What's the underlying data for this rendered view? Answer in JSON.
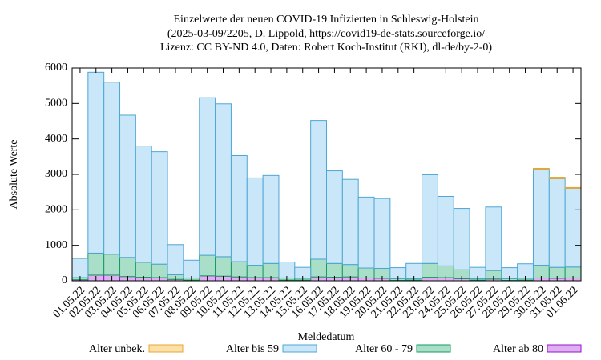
{
  "chart_data": {
    "type": "bar",
    "stacked": true,
    "title": "Einzelwerte der neuen COVID-19 Infizierten in Schleswig-Holstein",
    "subtitle": [
      "(2025-03-09/2205, D. Lippold, https://covid19-de-stats.sourceforge.io/",
      "Lizenz: CC BY-ND 4.0, Daten: Robert Koch-Institut (RKI), dl-de/by-2-0)"
    ],
    "x_label": "Meldedatum",
    "y_label": "Absolute Werte",
    "categories": [
      "01.05.22",
      "02.05.22",
      "03.05.22",
      "04.05.22",
      "05.05.22",
      "06.05.22",
      "07.05.22",
      "08.05.22",
      "09.05.22",
      "10.05.22",
      "11.05.22",
      "12.05.22",
      "13.05.22",
      "14.05.22",
      "15.05.22",
      "16.05.22",
      "17.05.22",
      "18.05.22",
      "19.05.22",
      "20.05.22",
      "21.05.22",
      "22.05.22",
      "23.05.22",
      "24.05.22",
      "25.05.22",
      "26.05.22",
      "27.05.22",
      "28.05.22",
      "29.05.22",
      "30.05.22",
      "31.05.22",
      "01.06.22"
    ],
    "series": [
      {
        "name": "Alter unbek.",
        "color": "#fbe0a8",
        "edge": "#e8a534",
        "values": [
          0,
          0,
          0,
          0,
          0,
          0,
          0,
          0,
          0,
          0,
          0,
          0,
          0,
          0,
          0,
          0,
          0,
          0,
          0,
          0,
          0,
          0,
          0,
          0,
          0,
          0,
          0,
          0,
          0,
          20,
          40,
          20
        ]
      },
      {
        "name": "Alter bis 59",
        "color": "#c9e7f8",
        "edge": "#4ea6d4",
        "values": [
          540,
          5100,
          4850,
          4010,
          3280,
          3170,
          850,
          500,
          4440,
          4310,
          2990,
          2460,
          2480,
          450,
          310,
          3910,
          2610,
          2400,
          2000,
          1970,
          310,
          430,
          2500,
          1960,
          1730,
          320,
          1790,
          310,
          410,
          2710,
          2500,
          2220
        ]
      },
      {
        "name": "Alter 60 - 79",
        "color": "#a9dfc9",
        "edge": "#169a5e",
        "values": [
          60,
          620,
          590,
          540,
          420,
          380,
          130,
          60,
          580,
          550,
          430,
          350,
          400,
          60,
          50,
          500,
          390,
          350,
          280,
          280,
          50,
          40,
          390,
          330,
          250,
          40,
          240,
          50,
          50,
          360,
          310,
          310
        ]
      },
      {
        "name": "Alter ab 80",
        "color": "#deb0f2",
        "edge": "#9a10cc",
        "values": [
          30,
          160,
          160,
          120,
          100,
          90,
          40,
          20,
          140,
          130,
          110,
          90,
          90,
          20,
          20,
          110,
          100,
          110,
          80,
          70,
          10,
          20,
          100,
          90,
          60,
          20,
          50,
          10,
          20,
          80,
          70,
          80
        ]
      }
    ],
    "ylim": [
      0,
      6000
    ],
    "yticks": [
      0,
      1000,
      2000,
      3000,
      4000,
      5000,
      6000
    ],
    "legend": "bottom"
  }
}
